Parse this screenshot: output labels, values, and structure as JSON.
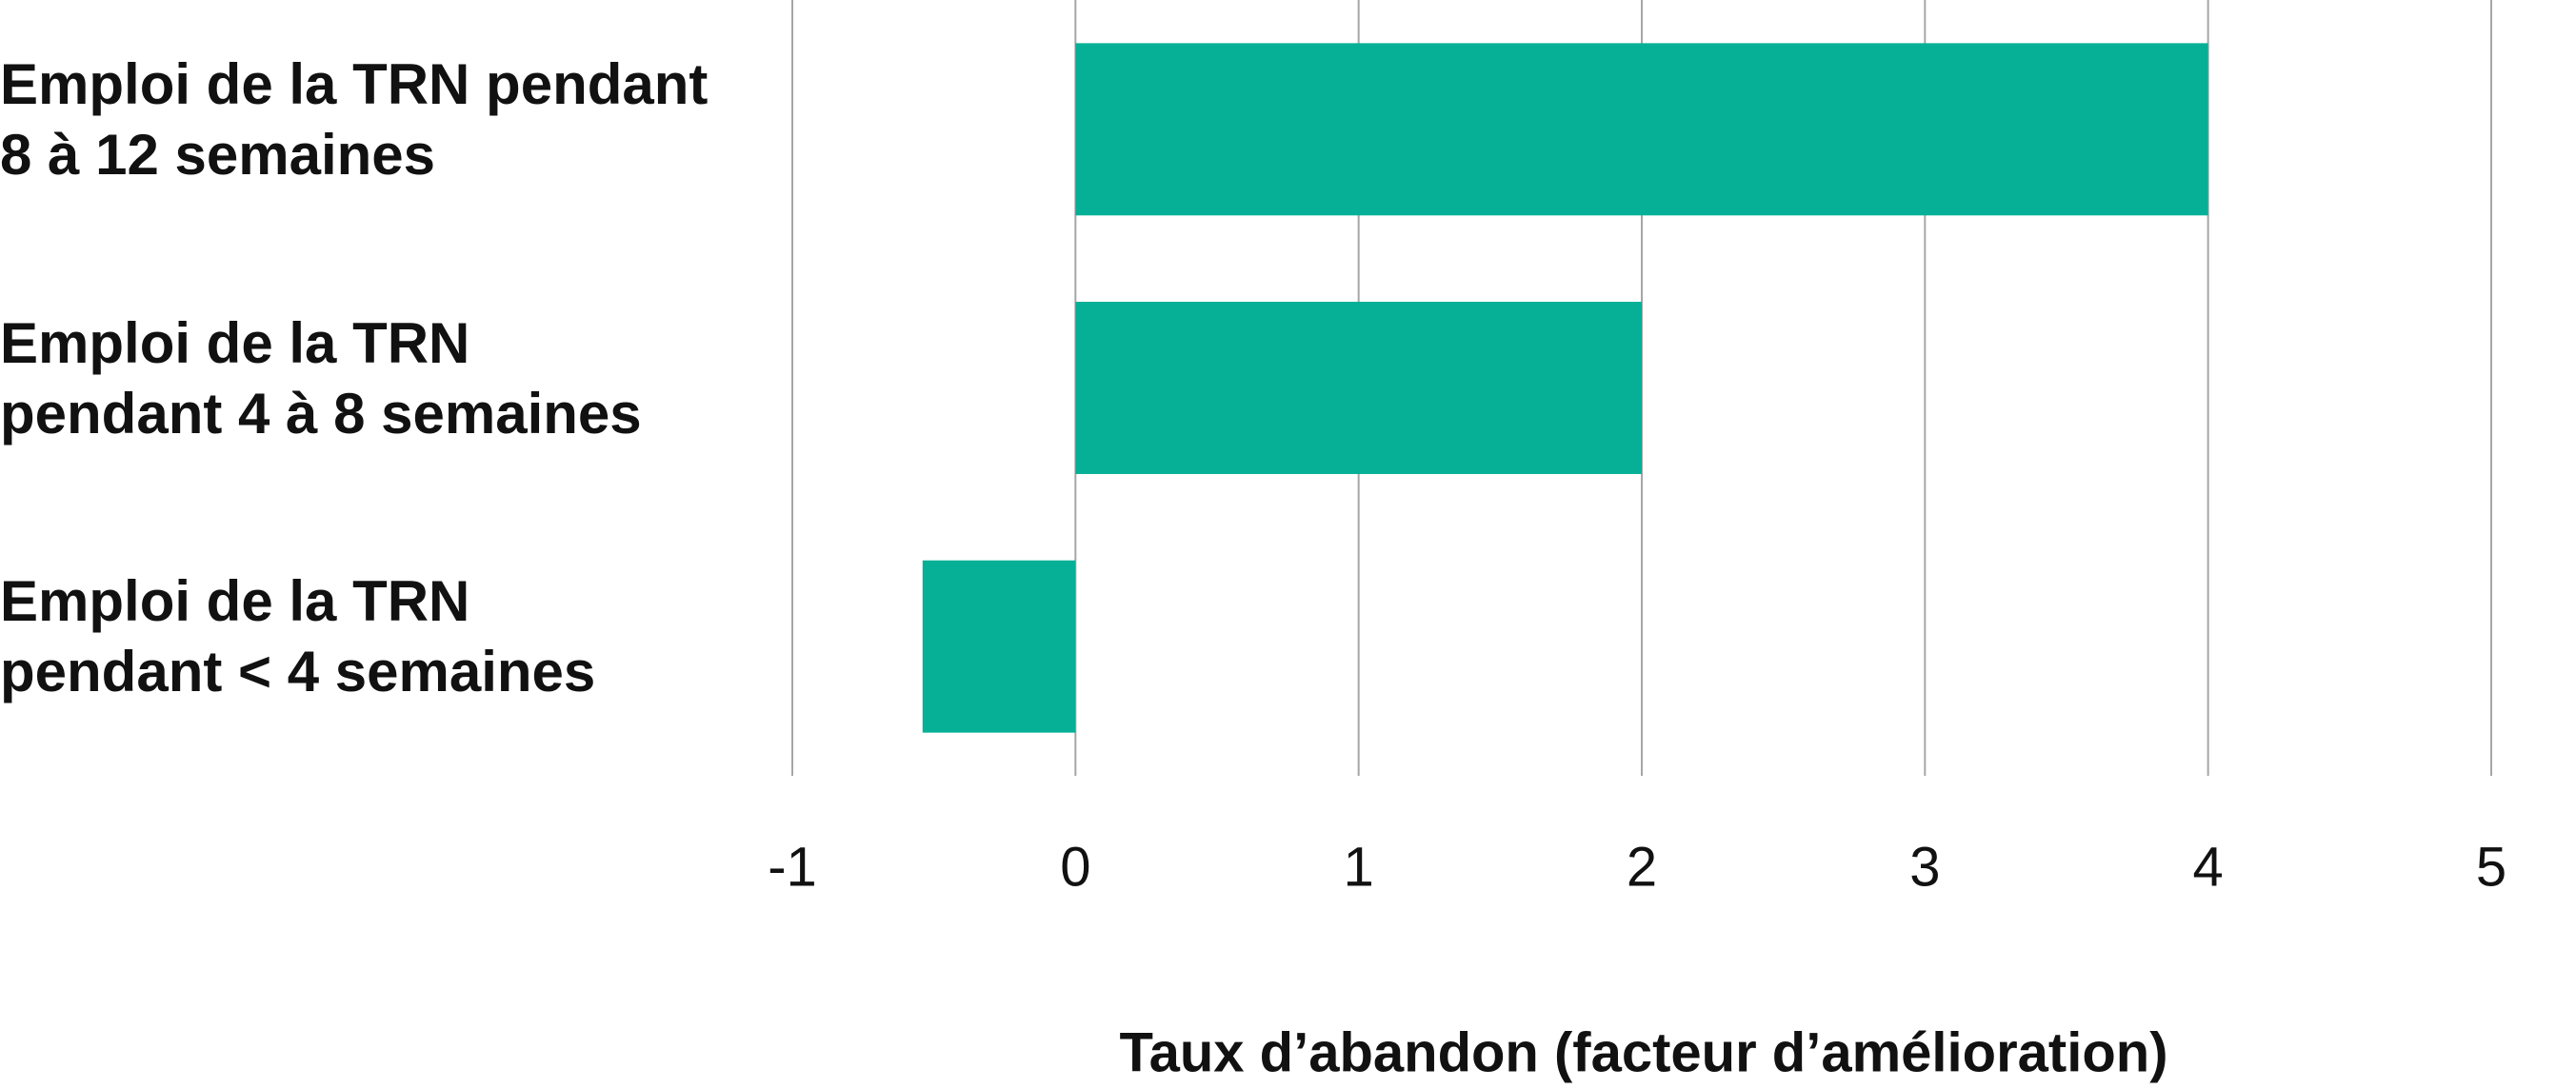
{
  "chart_data": {
    "type": "bar",
    "orientation": "horizontal",
    "categories": [
      "Emploi de la TRN pendant\n8 à 12 semaines",
      "Emploi de la TRN\npendant 4 à 8 semaines",
      "Emploi de la TRN\npendant < 4 semaines"
    ],
    "values": [
      4,
      2,
      -0.54
    ],
    "color": "#05b096",
    "xlim": [
      -1,
      5
    ],
    "xticks": [
      -1,
      0,
      1,
      2,
      3,
      4,
      5
    ],
    "grid": true,
    "xlabel": "Taux d’abandon (facteur d’amélioration)"
  }
}
